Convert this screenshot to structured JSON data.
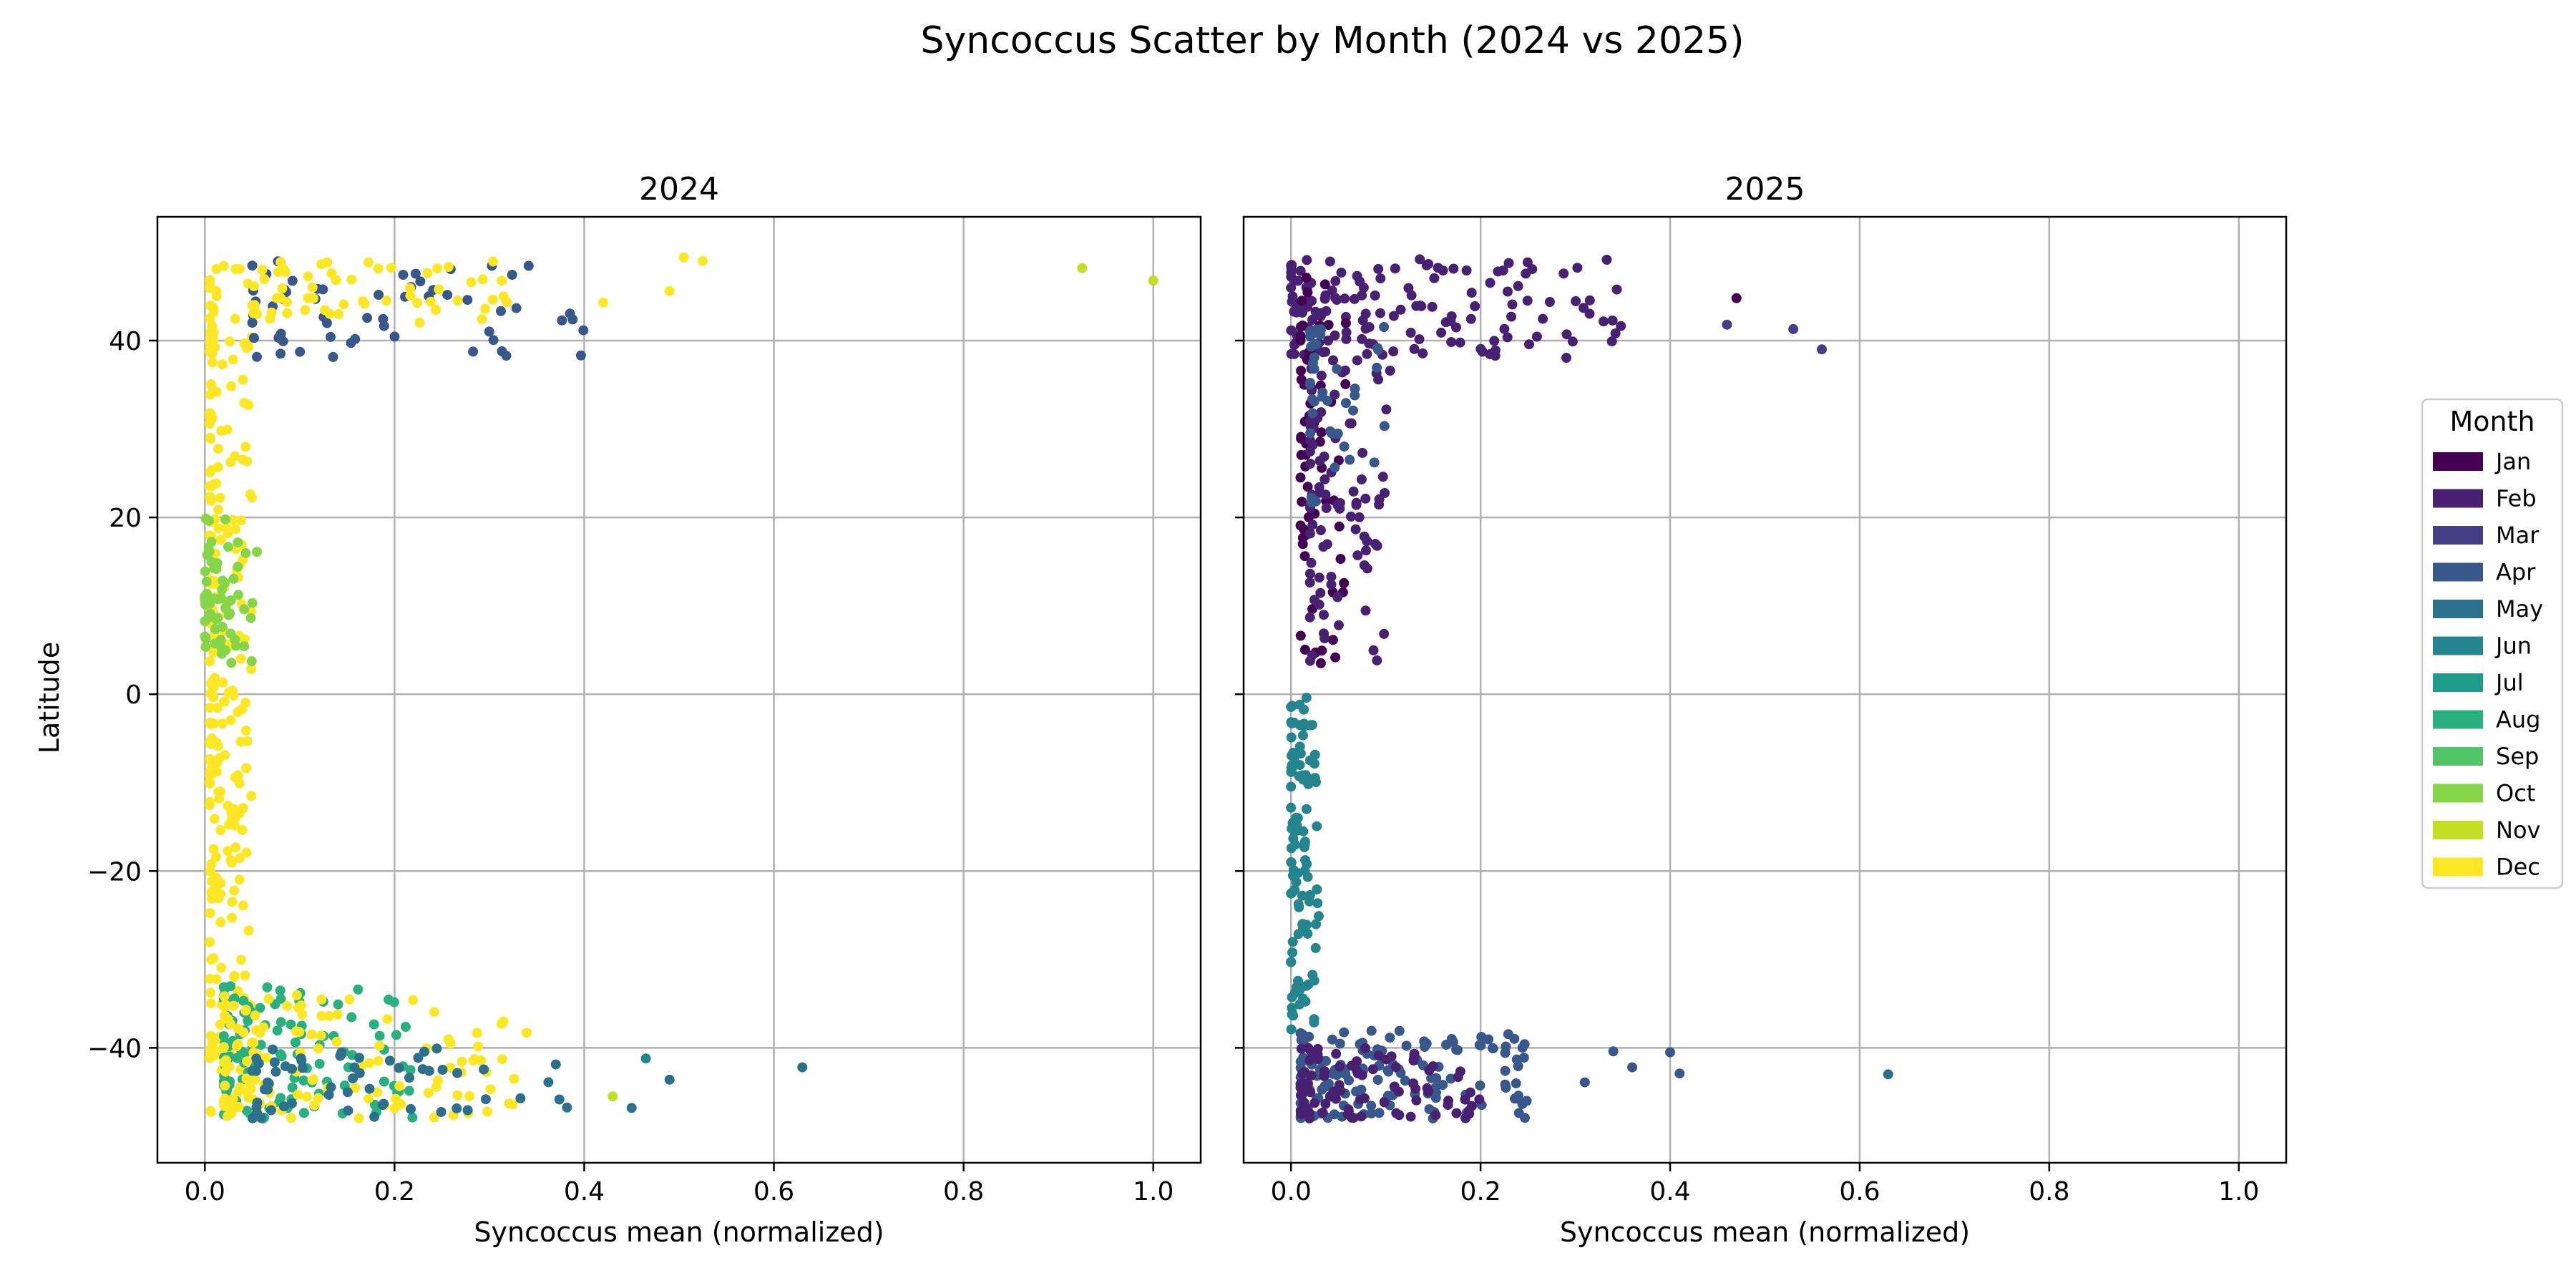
{
  "figure": {
    "title": "Syncoccus Scatter by Month (2024 vs 2025)",
    "ylabel": "Latitude"
  },
  "legend": {
    "title": "Month",
    "placement": "right",
    "items": [
      {
        "label": "Jan",
        "color": "#440154"
      },
      {
        "label": "Feb",
        "color": "#482173"
      },
      {
        "label": "Mar",
        "color": "#433e85"
      },
      {
        "label": "Apr",
        "color": "#38588c"
      },
      {
        "label": "May",
        "color": "#2d708e"
      },
      {
        "label": "Jun",
        "color": "#25858e"
      },
      {
        "label": "Jul",
        "color": "#1e9b8a"
      },
      {
        "label": "Aug",
        "color": "#2ab07f"
      },
      {
        "label": "Sep",
        "color": "#52c569"
      },
      {
        "label": "Oct",
        "color": "#86d549"
      },
      {
        "label": "Nov",
        "color": "#c2df23"
      },
      {
        "label": "Dec",
        "color": "#fde725"
      }
    ]
  },
  "chart_data": [
    {
      "type": "scatter",
      "title": "2024",
      "xlabel": "Syncoccus mean (normalized)",
      "ylabel": "Latitude",
      "xlim": [
        -0.05,
        1.05
      ],
      "ylim": [
        -53,
        54
      ],
      "xticks": [
        "0.0",
        "0.2",
        "0.4",
        "0.6",
        "0.8",
        "1.0"
      ],
      "yticks": [
        "−40",
        "−20",
        "0",
        "20",
        "40"
      ],
      "grid": true,
      "clusters": [
        {
          "month": "Dec",
          "lat": [
            -48,
            49
          ],
          "x": [
            0.005,
            0.05
          ],
          "count": 260
        },
        {
          "month": "Oct",
          "lat": [
            3,
            20
          ],
          "x": [
            0.0,
            0.06
          ],
          "count": 60
        },
        {
          "month": "Apr",
          "lat": [
            38,
            49
          ],
          "x": [
            0.05,
            0.4
          ],
          "count": 60
        },
        {
          "month": "Dec",
          "lat": [
            42,
            49
          ],
          "x": [
            0.05,
            0.32
          ],
          "count": 60
        },
        {
          "month": "Aug",
          "lat": [
            -48,
            -33
          ],
          "x": [
            0.02,
            0.22
          ],
          "count": 120
        },
        {
          "month": "Dec",
          "lat": [
            -48,
            -34
          ],
          "x": [
            0.02,
            0.34
          ],
          "count": 130
        },
        {
          "month": "May",
          "lat": [
            -48,
            -40
          ],
          "x": [
            0.05,
            0.4
          ],
          "count": 60
        }
      ],
      "points": [
        {
          "x": 0.925,
          "y": 48.2,
          "month": "Nov"
        },
        {
          "x": 1.0,
          "y": 46.8,
          "month": "Nov"
        },
        {
          "x": 0.505,
          "y": 49.4,
          "month": "Dec"
        },
        {
          "x": 0.525,
          "y": 49.0,
          "month": "Dec"
        },
        {
          "x": 0.49,
          "y": 45.6,
          "month": "Dec"
        },
        {
          "x": 0.42,
          "y": 44.3,
          "month": "Dec"
        },
        {
          "x": 0.63,
          "y": -42.2,
          "month": "May"
        },
        {
          "x": 0.49,
          "y": -43.6,
          "month": "May"
        },
        {
          "x": 0.45,
          "y": -46.8,
          "month": "May"
        },
        {
          "x": 0.43,
          "y": -45.5,
          "month": "Nov"
        },
        {
          "x": 0.465,
          "y": -41.2,
          "month": "Jun"
        }
      ]
    },
    {
      "type": "scatter",
      "title": "2025",
      "xlabel": "Syncoccus mean (normalized)",
      "xlim": [
        -0.05,
        1.05
      ],
      "ylim": [
        -53,
        54
      ],
      "xticks": [
        "0.0",
        "0.2",
        "0.4",
        "0.6",
        "0.8",
        "1.0"
      ],
      "grid": true,
      "clusters": [
        {
          "month": "Feb",
          "lat": [
            38,
            49.5
          ],
          "x": [
            0.0,
            0.35
          ],
          "count": 150
        },
        {
          "month": "Jan",
          "lat": [
            3,
            48
          ],
          "x": [
            0.01,
            0.06
          ],
          "count": 60
        },
        {
          "month": "Feb",
          "lat": [
            3,
            38
          ],
          "x": [
            0.02,
            0.11
          ],
          "count": 90
        },
        {
          "month": "Apr",
          "lat": [
            20,
            42
          ],
          "x": [
            0.02,
            0.1
          ],
          "count": 40
        },
        {
          "month": "Jun",
          "lat": [
            -38,
            0
          ],
          "x": [
            0.0,
            0.03
          ],
          "count": 110
        },
        {
          "month": "Apr",
          "lat": [
            -48,
            -38
          ],
          "x": [
            0.01,
            0.25
          ],
          "count": 150
        },
        {
          "month": "Feb",
          "lat": [
            -48,
            -40
          ],
          "x": [
            0.01,
            0.2
          ],
          "count": 90
        }
      ],
      "points": [
        {
          "x": 0.47,
          "y": 44.8,
          "month": "Jan"
        },
        {
          "x": 0.53,
          "y": 41.3,
          "month": "Mar"
        },
        {
          "x": 0.56,
          "y": 39.0,
          "month": "Mar"
        },
        {
          "x": 0.46,
          "y": 41.8,
          "month": "Mar"
        },
        {
          "x": 0.63,
          "y": -43.0,
          "month": "May"
        },
        {
          "x": 0.41,
          "y": -42.9,
          "month": "Apr"
        },
        {
          "x": 0.4,
          "y": -40.5,
          "month": "Apr"
        },
        {
          "x": 0.36,
          "y": -42.2,
          "month": "Apr"
        },
        {
          "x": 0.34,
          "y": -40.4,
          "month": "Apr"
        },
        {
          "x": 0.31,
          "y": -43.9,
          "month": "Apr"
        }
      ]
    }
  ]
}
